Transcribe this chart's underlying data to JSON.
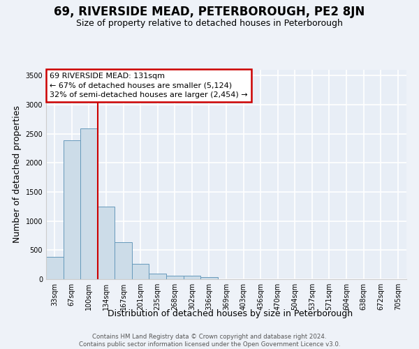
{
  "title": "69, RIVERSIDE MEAD, PETERBOROUGH, PE2 8JN",
  "subtitle": "Size of property relative to detached houses in Peterborough",
  "xlabel": "Distribution of detached houses by size in Peterborough",
  "ylabel": "Number of detached properties",
  "footer_line1": "Contains HM Land Registry data © Crown copyright and database right 2024.",
  "footer_line2": "Contains public sector information licensed under the Open Government Licence v3.0.",
  "bin_labels": [
    "33sqm",
    "67sqm",
    "100sqm",
    "134sqm",
    "167sqm",
    "201sqm",
    "235sqm",
    "268sqm",
    "302sqm",
    "336sqm",
    "369sqm",
    "403sqm",
    "436sqm",
    "470sqm",
    "504sqm",
    "537sqm",
    "571sqm",
    "604sqm",
    "638sqm",
    "672sqm",
    "705sqm"
  ],
  "bar_values": [
    390,
    2390,
    2590,
    1250,
    640,
    260,
    100,
    60,
    60,
    40,
    0,
    0,
    0,
    0,
    0,
    0,
    0,
    0,
    0,
    0,
    0
  ],
  "bar_color": "#ccdce8",
  "bar_edge_color": "#6699bb",
  "vline_x": 2.5,
  "vline_color": "#cc0000",
  "annotation_line1": "69 RIVERSIDE MEAD: 131sqm",
  "annotation_line2": "← 67% of detached houses are smaller (5,124)",
  "annotation_line3": "32% of semi-detached houses are larger (2,454) →",
  "annotation_box_edgecolor": "#cc0000",
  "ylim": [
    0,
    3600
  ],
  "yticks": [
    0,
    500,
    1000,
    1500,
    2000,
    2500,
    3000,
    3500
  ],
  "bg_color": "#eef2f8",
  "plot_bg_color": "#e8eef6",
  "grid_color": "#ffffff",
  "grid_color_minor": "#d0d8e8",
  "title_fontsize": 12,
  "subtitle_fontsize": 9,
  "axis_label_fontsize": 9,
  "tick_fontsize": 7,
  "annotation_fontsize": 8
}
